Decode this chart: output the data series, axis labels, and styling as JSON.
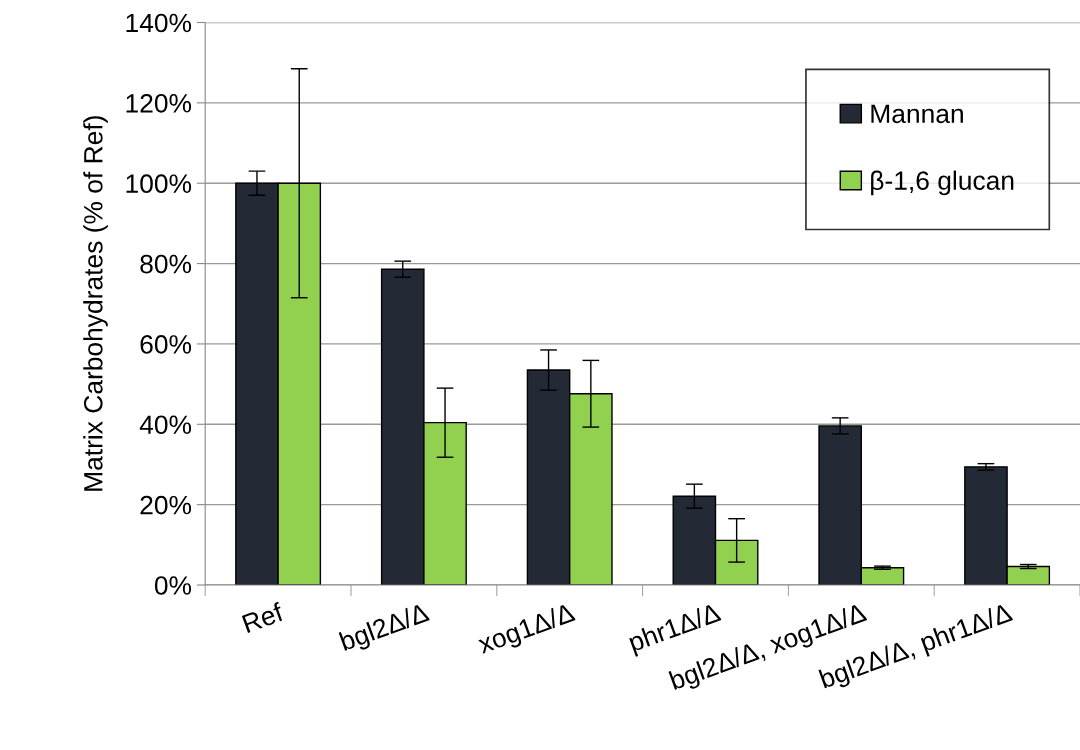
{
  "chart_data": {
    "type": "bar",
    "ylabel": "Matrix Carbohydrates (% of Ref)",
    "categories": [
      "Ref",
      "bgl2Δ/Δ",
      "xog1Δ/Δ",
      "phr1Δ/Δ",
      "bgl2Δ/Δ, xog1Δ/Δ",
      "bgl2Δ/Δ, phr1Δ/Δ"
    ],
    "series": [
      {
        "name": "Mannan",
        "color": "#232a35",
        "values": [
          100,
          78.6,
          53.5,
          22.1,
          39.6,
          29.4
        ],
        "errors": [
          3,
          2,
          5,
          3,
          2,
          0.8
        ]
      },
      {
        "name": "β-1,6 glucan",
        "color": "#92d050",
        "values": [
          100,
          40.4,
          47.6,
          11.1,
          4.3,
          4.6
        ],
        "errors": [
          28.5,
          8.6,
          8.3,
          5.4,
          0.4,
          0.5
        ]
      }
    ],
    "ylim": [
      0,
      140
    ],
    "yticks": [
      {
        "value": 0,
        "label": "0%"
      },
      {
        "value": 20,
        "label": "20%"
      },
      {
        "value": 40,
        "label": "40%"
      },
      {
        "value": 60,
        "label": "60%"
      },
      {
        "value": 80,
        "label": "80%"
      },
      {
        "value": 100,
        "label": "100%"
      },
      {
        "value": 120,
        "label": "120%"
      },
      {
        "value": 140,
        "label": "140%"
      }
    ],
    "grid": "y",
    "legend": "top right"
  }
}
